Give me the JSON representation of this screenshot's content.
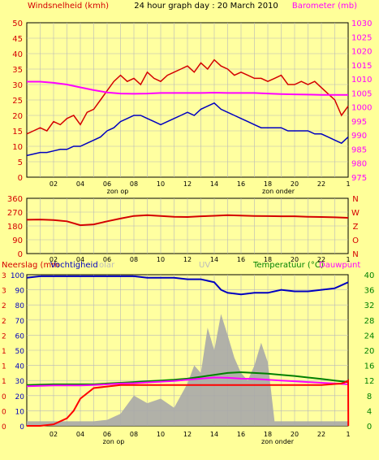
{
  "chart_data": [
    {
      "type": "line",
      "title": "24 hour graph day : 20 March 2010",
      "left_axis_label": "Windsnelheid (kmh)",
      "right_axis_label": "Barometer (mb)",
      "left_ylim": [
        0,
        50
      ],
      "left_ticks": [
        "0",
        "5",
        "10",
        "15",
        "20",
        "25",
        "30",
        "35",
        "40",
        "45",
        "50"
      ],
      "right_ylim": [
        975,
        1030
      ],
      "right_ticks": [
        "975",
        "980",
        "985",
        "990",
        "995",
        "1000",
        "1005",
        "1010",
        "1015",
        "1020",
        "1025",
        "1030"
      ],
      "x_ticks": [
        "02",
        "04",
        "06",
        "08",
        "10",
        "12",
        "14",
        "16",
        "18",
        "20",
        "22",
        "1"
      ],
      "markers": [
        "zon op",
        "zon onder"
      ],
      "grid": true,
      "series": [
        {
          "key": "gust",
          "color": "#D40000",
          "x": [
            0,
            0.5,
            1,
            1.5,
            2,
            2.5,
            3,
            3.5,
            4,
            4.5,
            5,
            5.5,
            6,
            6.5,
            7,
            7.5,
            8,
            8.5,
            9,
            9.5,
            10,
            10.5,
            11,
            11.5,
            12,
            12.5,
            13,
            13.5,
            14,
            14.5,
            15,
            15.5,
            16,
            16.5,
            17,
            17.5,
            18,
            18.5,
            19,
            19.5,
            20,
            20.5,
            21,
            21.5,
            22,
            22.5,
            23,
            23.5,
            24
          ],
          "y": [
            14,
            15,
            16,
            15,
            18,
            17,
            19,
            20,
            17,
            21,
            22,
            25,
            28,
            31,
            33,
            31,
            32,
            30,
            34,
            32,
            31,
            33,
            34,
            35,
            36,
            34,
            37,
            35,
            38,
            36,
            35,
            33,
            34,
            33,
            32,
            32,
            31,
            32,
            33,
            30,
            30,
            31,
            30,
            31,
            29,
            27,
            25,
            20,
            23
          ]
        },
        {
          "key": "avg",
          "color": "#0000C0",
          "x": [
            0,
            0.5,
            1,
            1.5,
            2,
            2.5,
            3,
            3.5,
            4,
            4.5,
            5,
            5.5,
            6,
            6.5,
            7,
            7.5,
            8,
            8.5,
            9,
            9.5,
            10,
            10.5,
            11,
            11.5,
            12,
            12.5,
            13,
            13.5,
            14,
            14.5,
            15,
            15.5,
            16,
            16.5,
            17,
            17.5,
            18,
            18.5,
            19,
            19.5,
            20,
            20.5,
            21,
            21.5,
            22,
            22.5,
            23,
            23.5,
            24
          ],
          "y": [
            7,
            7.5,
            8,
            8,
            8.5,
            9,
            9,
            10,
            10,
            11,
            12,
            13,
            15,
            16,
            18,
            19,
            20,
            20,
            19,
            18,
            17,
            18,
            19,
            20,
            21,
            20,
            22,
            23,
            24,
            22,
            21,
            20,
            19,
            18,
            17,
            16,
            16,
            16,
            16,
            15,
            15,
            15,
            15,
            14,
            14,
            13,
            12,
            11,
            13
          ]
        },
        {
          "key": "baro",
          "color": "#FF00FF",
          "axis": "right",
          "x": [
            0,
            1,
            2,
            3,
            4,
            5,
            6,
            7,
            8,
            9,
            10,
            11,
            12,
            13,
            14,
            15,
            16,
            17,
            18,
            19,
            20,
            21,
            22,
            23,
            24
          ],
          "y": [
            1009,
            1009,
            1008.6,
            1008,
            1007,
            1006,
            1005.2,
            1004.8,
            1004.7,
            1004.8,
            1005,
            1005,
            1005,
            1005,
            1005.1,
            1005,
            1005,
            1005,
            1004.8,
            1004.6,
            1004.5,
            1004.4,
            1004.3,
            1004.3,
            1004.3
          ]
        }
      ]
    },
    {
      "type": "line",
      "left_ticks": [
        "0",
        "90",
        "180",
        "270",
        "360"
      ],
      "ylim": [
        0,
        360
      ],
      "right_labels": [
        "N",
        "W",
        "Z",
        "O",
        "N"
      ],
      "x_ticks": [
        "02",
        "04",
        "06",
        "08",
        "10",
        "12",
        "14",
        "16",
        "18",
        "20",
        "22",
        "1"
      ],
      "grid": true,
      "series": [
        {
          "key": "dir",
          "color": "#D40000",
          "x": [
            0,
            1,
            2,
            3,
            4,
            5,
            6,
            7,
            8,
            9,
            10,
            11,
            12,
            13,
            14,
            15,
            16,
            17,
            18,
            19,
            20,
            21,
            22,
            23,
            24
          ],
          "y": [
            220,
            222,
            218,
            210,
            185,
            190,
            210,
            228,
            245,
            250,
            245,
            240,
            238,
            243,
            246,
            250,
            248,
            245,
            244,
            243,
            243,
            240,
            238,
            236,
            233
          ]
        }
      ]
    },
    {
      "type": "line",
      "left_labels": [
        "Neerslag (mm",
        "Vochtigheid",
        "olar",
        "UV"
      ],
      "right_labels": [
        "Temperatuur (°C)",
        "Dauwpunt"
      ],
      "left_ticks_rain": [
        "0",
        "0",
        "0",
        "1",
        "1",
        "1",
        "2",
        "2",
        "2",
        "3",
        "3"
      ],
      "left_ticks_hum": [
        "0",
        "10",
        "20",
        "30",
        "40",
        "50",
        "60",
        "70",
        "80",
        "90",
        "100"
      ],
      "left_ylim": [
        0,
        100
      ],
      "right_ticks": [
        "0",
        "4",
        "8",
        "12",
        "16",
        "20",
        "24",
        "28",
        "32",
        "36",
        "40"
      ],
      "right_ylim": [
        0,
        40
      ],
      "x_ticks": [
        "02",
        "04",
        "06",
        "08",
        "10",
        "12",
        "14",
        "16",
        "18",
        "20",
        "22",
        "1"
      ],
      "markers": [
        "zon op",
        "zon onder"
      ],
      "grid": true,
      "series": [
        {
          "key": "humidity",
          "color": "#0000C0",
          "axis": "left",
          "x": [
            0,
            1,
            2,
            3,
            4,
            5,
            6,
            7,
            8,
            9,
            10,
            11,
            12,
            13,
            14,
            14.5,
            15,
            16,
            17,
            18,
            19,
            20,
            21,
            22,
            23,
            24
          ],
          "y": [
            98,
            99,
            99,
            99,
            99,
            99,
            99,
            99,
            99,
            98,
            98,
            98,
            97,
            97,
            95,
            90,
            88,
            87,
            88,
            88,
            90,
            89,
            89,
            90,
            91,
            95
          ]
        },
        {
          "key": "temperature",
          "color": "#008000",
          "axis": "right",
          "x": [
            0,
            1,
            2,
            3,
            4,
            5,
            6,
            7,
            8,
            9,
            10,
            11,
            12,
            13,
            14,
            15,
            16,
            17,
            18,
            19,
            20,
            21,
            22,
            23,
            24
          ],
          "y": [
            10.8,
            10.9,
            11,
            11,
            11,
            11,
            11.2,
            11.4,
            11.6,
            11.8,
            12,
            12.2,
            12.5,
            13,
            13.5,
            14,
            14.2,
            14,
            13.8,
            13.5,
            13.2,
            12.8,
            12.4,
            12,
            11.6
          ]
        },
        {
          "key": "dewpoint",
          "color": "#FF00FF",
          "axis": "right",
          "x": [
            0,
            1,
            2,
            3,
            4,
            5,
            6,
            7,
            8,
            9,
            10,
            11,
            12,
            13,
            14,
            15,
            16,
            17,
            18,
            19,
            20,
            21,
            22,
            23,
            24
          ],
          "y": [
            10.5,
            10.6,
            10.7,
            10.7,
            10.7,
            10.8,
            11,
            11.2,
            11.3,
            11.5,
            11.7,
            11.9,
            12.2,
            12.5,
            12.8,
            12.7,
            12.5,
            12.4,
            12.2,
            12,
            11.8,
            11.6,
            11.4,
            11.2,
            11
          ]
        },
        {
          "key": "rain",
          "color": "#FF0000",
          "axis": "left",
          "x": [
            0,
            1,
            2,
            3,
            3.5,
            4,
            5,
            6,
            7,
            9,
            12,
            15,
            18,
            21,
            22,
            23.5,
            23.8,
            24,
            24.01
          ],
          "y": [
            0,
            0,
            1,
            5,
            10,
            18,
            25,
            26,
            27,
            27,
            27,
            27,
            27,
            27,
            27,
            28,
            29,
            30,
            0
          ]
        },
        {
          "key": "solar",
          "color": "#A8A8A8",
          "kind": "area",
          "axis": "left",
          "x": [
            0,
            1,
            2,
            3,
            4,
            5,
            6,
            7,
            8,
            9,
            10,
            11,
            12,
            12.5,
            13,
            13.5,
            14,
            14.5,
            15,
            15.5,
            16,
            16.5,
            17,
            17.5,
            18,
            18.5,
            19,
            20,
            21,
            22,
            23,
            24
          ],
          "y": [
            3,
            3,
            3,
            3,
            3,
            3,
            4,
            8,
            20,
            15,
            18,
            12,
            28,
            40,
            35,
            65,
            50,
            74,
            60,
            45,
            35,
            30,
            40,
            55,
            42,
            3,
            3,
            3,
            3,
            3,
            3,
            3
          ]
        }
      ]
    }
  ]
}
